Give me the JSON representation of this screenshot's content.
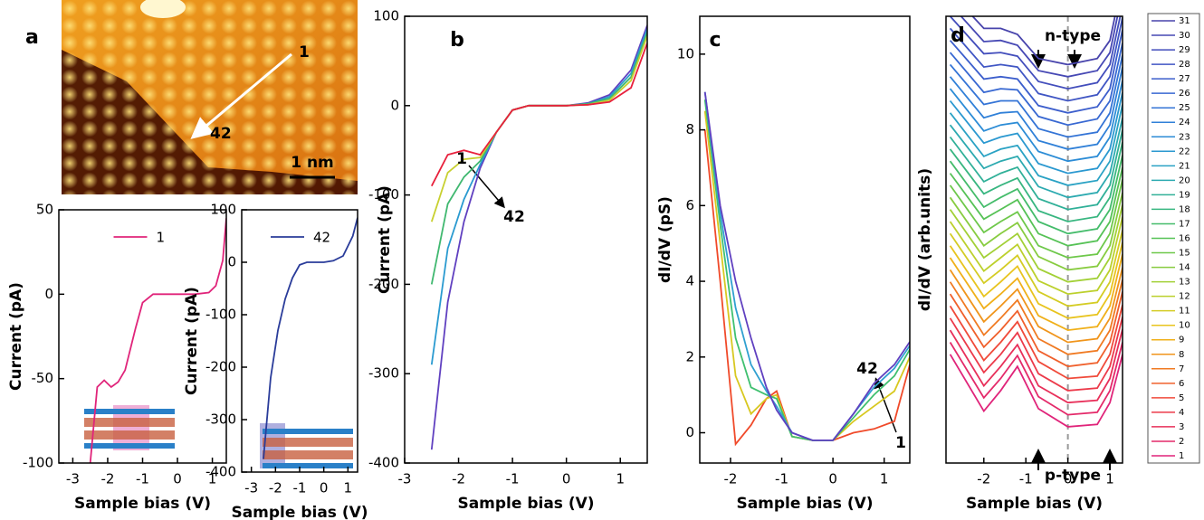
{
  "image": {
    "panel_label": "a",
    "markers": [
      "1",
      "42"
    ],
    "scale_bar": "1 nm"
  },
  "chart_data": [
    {
      "type": "line",
      "xlabel": "Sample bias (V)",
      "ylabel": "Current (pA)",
      "xlim": [
        -3.4,
        1.4
      ],
      "xticks": [
        -3,
        -2,
        -1,
        0,
        1
      ],
      "ylim": [
        -100,
        50
      ],
      "yticks": [
        -100,
        -50,
        0,
        50
      ],
      "legend": "upper center",
      "x": [
        -2.5,
        -2.3,
        -2.1,
        -1.9,
        -1.7,
        -1.5,
        -1.2,
        -1.0,
        -0.7,
        0,
        0.5,
        0.9,
        1.1,
        1.3,
        1.4
      ],
      "series": [
        {
          "name": "1",
          "color": "#e0247a",
          "values": [
            -100,
            -55,
            -51,
            -55,
            -52,
            -45,
            -20,
            -5,
            0,
            0,
            0,
            1,
            5,
            20,
            45
          ]
        }
      ]
    },
    {
      "type": "line",
      "xlabel": "Sample bias (V)",
      "ylabel": "Current (pA)",
      "xlim": [
        -3.4,
        1.4
      ],
      "xticks": [
        -3,
        -2,
        -1,
        0,
        1
      ],
      "ylim": [
        -400,
        100
      ],
      "yticks": [
        -400,
        -300,
        -200,
        -100,
        0,
        100
      ],
      "legend": "upper center",
      "x": [
        -2.5,
        -2.2,
        -1.9,
        -1.6,
        -1.3,
        -1.0,
        -0.7,
        0,
        0.4,
        0.8,
        1.2,
        1.4
      ],
      "series": [
        {
          "name": "42",
          "color": "#2a3c9a",
          "values": [
            -375,
            -220,
            -130,
            -70,
            -30,
            -5,
            0,
            0,
            3,
            12,
            50,
            85
          ]
        }
      ]
    },
    {
      "type": "line",
      "panel_label": "b",
      "xlabel": "Sample bias (V)",
      "ylabel": "Current (pA)",
      "xlim": [
        -3,
        1.5
      ],
      "xticks": [
        -3,
        -2,
        -1,
        0,
        1
      ],
      "ylim": [
        -400,
        100
      ],
      "yticks": [
        -400,
        -300,
        -200,
        -100,
        0,
        100
      ],
      "annotations": [
        "1",
        "42"
      ],
      "x": [
        -2.5,
        -2.2,
        -1.9,
        -1.6,
        -1.3,
        -1.0,
        -0.7,
        0,
        0.4,
        0.8,
        1.2,
        1.5
      ],
      "series": [
        {
          "color": "#6040c0",
          "values": [
            -385,
            -220,
            -130,
            -70,
            -30,
            -5,
            0,
            0,
            3,
            12,
            40,
            90
          ]
        },
        {
          "color": "#2a9ad0",
          "values": [
            -290,
            -160,
            -105,
            -66,
            -30,
            -5,
            0,
            0,
            2,
            10,
            36,
            86
          ]
        },
        {
          "color": "#40b870",
          "values": [
            -200,
            -110,
            -80,
            -62,
            -30,
            -5,
            0,
            0,
            2,
            8,
            32,
            82
          ]
        },
        {
          "color": "#c8d030",
          "values": [
            -130,
            -75,
            -60,
            -58,
            -30,
            -5,
            0,
            0,
            1,
            6,
            28,
            78
          ]
        },
        {
          "color": "#e8203c",
          "values": [
            -90,
            -55,
            -50,
            -55,
            -30,
            -5,
            0,
            0,
            1,
            4,
            20,
            70
          ]
        }
      ]
    },
    {
      "type": "line",
      "panel_label": "c",
      "xlabel": "Sample bias (V)",
      "ylabel": "dI/dV (pS)",
      "xlim": [
        -2.6,
        1.5
      ],
      "xticks": [
        -2,
        -1,
        0,
        1
      ],
      "ylim": [
        -0.8,
        11
      ],
      "yticks": [
        0,
        2,
        4,
        6,
        8,
        10
      ],
      "annotations": [
        "42",
        "1"
      ],
      "x": [
        -2.5,
        -2.2,
        -1.9,
        -1.6,
        -1.3,
        -1.1,
        -0.8,
        -0.4,
        0,
        0.4,
        0.8,
        1.2,
        1.5
      ],
      "series": [
        {
          "color": "#f04a2a",
          "values": [
            8,
            4,
            -0.3,
            0.2,
            0.9,
            1.1,
            -0.1,
            -0.2,
            -0.2,
            0,
            0.1,
            0.3,
            1.8
          ]
        },
        {
          "color": "#d8c820",
          "values": [
            8.5,
            5,
            1.5,
            0.5,
            0.9,
            1.0,
            -0.1,
            -0.2,
            -0.2,
            0.3,
            0.7,
            1.1,
            2
          ]
        },
        {
          "color": "#40c070",
          "values": [
            8.8,
            5.5,
            2.5,
            1.2,
            1.0,
            0.9,
            -0.1,
            -0.2,
            -0.2,
            0.4,
            1.0,
            1.5,
            2.2
          ]
        },
        {
          "color": "#30a0d0",
          "values": [
            9,
            5.8,
            3.3,
            1.8,
            1.1,
            0.7,
            0,
            -0.2,
            -0.2,
            0.5,
            1.2,
            1.7,
            2.3
          ]
        },
        {
          "color": "#6040c0",
          "values": [
            9,
            6,
            4,
            2.5,
            1.2,
            0.6,
            0,
            -0.2,
            -0.2,
            0.5,
            1.3,
            1.8,
            2.4
          ]
        }
      ]
    },
    {
      "type": "line",
      "panel_label": "d",
      "xlabel": "Sample bias (V)",
      "ylabel": "dI/dV (arb.units)",
      "xlim": [
        -2.9,
        1.3
      ],
      "xticks": [
        -2,
        -1,
        0,
        1
      ],
      "ylim": [
        0,
        37
      ],
      "zero_line": true,
      "legend": "outside right",
      "annotations": [
        "n-type",
        "p-type"
      ],
      "x": [
        -2.8,
        -2.0,
        -1.6,
        -1.2,
        -0.7,
        0,
        0.7,
        1.0,
        1.3
      ],
      "series": [
        {
          "name": "1",
          "color": "#e0247a",
          "values": [
            9,
            4.3,
            6,
            8,
            4.5,
            3,
            3.2,
            5,
            9
          ]
        },
        {
          "name": "2",
          "color": "#e42a6a",
          "values": [
            10,
            5.4,
            7,
            8.9,
            5.5,
            4,
            4.2,
            6,
            10
          ]
        },
        {
          "name": "3",
          "color": "#e8305a",
          "values": [
            11,
            6.4,
            8,
            9.8,
            6.4,
            5,
            5.2,
            7,
            11.1
          ]
        },
        {
          "name": "4",
          "color": "#ec3a4a",
          "values": [
            12,
            7.5,
            9,
            10.8,
            7.4,
            6,
            6.2,
            8,
            12.1
          ]
        },
        {
          "name": "5",
          "color": "#f04a3a",
          "values": [
            13,
            8.5,
            10,
            11.7,
            8.4,
            7,
            7.2,
            9,
            13.1
          ]
        },
        {
          "name": "6",
          "color": "#f0602c",
          "values": [
            14,
            9.6,
            11,
            12.6,
            9.3,
            8,
            8.3,
            10,
            14.2
          ]
        },
        {
          "name": "7",
          "color": "#f07a22",
          "values": [
            15,
            10.6,
            12,
            13.5,
            10.3,
            9,
            9.3,
            11,
            15.2
          ]
        },
        {
          "name": "8",
          "color": "#f0951c",
          "values": [
            16,
            11.7,
            13,
            14.4,
            11.3,
            10,
            10.3,
            12,
            16.2
          ]
        },
        {
          "name": "9",
          "color": "#f0b01a",
          "values": [
            17,
            12.8,
            14,
            15.3,
            12.2,
            11,
            11.3,
            13,
            17.3
          ]
        },
        {
          "name": "10",
          "color": "#e8c41e",
          "values": [
            18,
            13.8,
            15,
            16.3,
            13.2,
            12,
            12.3,
            14,
            18.3
          ]
        },
        {
          "name": "11",
          "color": "#d4cc24",
          "values": [
            19,
            14.9,
            16,
            17.2,
            14.2,
            13,
            13.3,
            15,
            19.3
          ]
        },
        {
          "name": "12",
          "color": "#bcd02c",
          "values": [
            20,
            15.9,
            17,
            18.1,
            15.1,
            14,
            14.3,
            16,
            20.4
          ]
        },
        {
          "name": "13",
          "color": "#a2d036",
          "values": [
            21,
            17,
            18,
            19,
            16.1,
            15,
            15.3,
            17,
            21.4
          ]
        },
        {
          "name": "14",
          "color": "#88cc40",
          "values": [
            22,
            18,
            19,
            19.9,
            17.1,
            16,
            16.3,
            18,
            22.4
          ]
        },
        {
          "name": "15",
          "color": "#6ec84a",
          "values": [
            23,
            19.1,
            20,
            20.8,
            18,
            17,
            17.3,
            19,
            23.5
          ]
        },
        {
          "name": "16",
          "color": "#56c256",
          "values": [
            24,
            20.2,
            21,
            21.8,
            19,
            18,
            18.4,
            20,
            24.5
          ]
        },
        {
          "name": "17",
          "color": "#44bc6a",
          "values": [
            25,
            21.2,
            22,
            22.7,
            20,
            19,
            19.4,
            21,
            25.5
          ]
        },
        {
          "name": "18",
          "color": "#38b680",
          "values": [
            26,
            22.3,
            23,
            23.6,
            20.9,
            20,
            20.4,
            22,
            26.6
          ]
        },
        {
          "name": "19",
          "color": "#30b098",
          "values": [
            27,
            23.3,
            24,
            24.5,
            21.9,
            21,
            21.4,
            23,
            27.6
          ]
        },
        {
          "name": "20",
          "color": "#2caab0",
          "values": [
            28,
            24.4,
            25,
            25.4,
            22.9,
            22,
            22.4,
            24,
            28.6
          ]
        },
        {
          "name": "21",
          "color": "#2aa2c4",
          "values": [
            29,
            25.4,
            26,
            26.3,
            23.8,
            23,
            23.4,
            25,
            29.7
          ]
        },
        {
          "name": "22",
          "color": "#2a98d0",
          "values": [
            30,
            26.5,
            27,
            27.3,
            24.8,
            24,
            24.4,
            26,
            30.7
          ]
        },
        {
          "name": "23",
          "color": "#2c8cd6",
          "values": [
            31,
            27.5,
            28,
            28.2,
            25.8,
            25,
            25.4,
            27,
            31.7
          ]
        },
        {
          "name": "24",
          "color": "#3080d8",
          "values": [
            32,
            28.6,
            29,
            29.1,
            26.7,
            26,
            26.4,
            28,
            32.8
          ]
        },
        {
          "name": "25",
          "color": "#3474d6",
          "values": [
            33,
            29.7,
            30,
            30,
            27.7,
            27,
            27.4,
            29,
            33.8
          ]
        },
        {
          "name": "26",
          "color": "#3868d2",
          "values": [
            34,
            30.7,
            31,
            30.9,
            28.7,
            28,
            28.5,
            30,
            34.8
          ]
        },
        {
          "name": "27",
          "color": "#3c5ecc",
          "values": [
            35,
            31.8,
            32,
            31.8,
            29.6,
            29,
            29.5,
            31,
            35.9
          ]
        },
        {
          "name": "28",
          "color": "#4056c4",
          "values": [
            36,
            32.8,
            33,
            32.8,
            30.6,
            30,
            30.5,
            32,
            36.9
          ]
        },
        {
          "name": "29",
          "color": "#434ebc",
          "values": [
            37,
            33.9,
            34,
            33.7,
            31.6,
            31,
            31.5,
            33,
            37.9
          ]
        },
        {
          "name": "30",
          "color": "#4648b4",
          "values": [
            38,
            34.9,
            35,
            34.6,
            32.5,
            32,
            32.5,
            34,
            39
          ]
        },
        {
          "name": "31",
          "color": "#4844ac",
          "values": [
            39,
            36,
            36,
            35.5,
            33.5,
            33,
            33.5,
            35,
            40
          ]
        }
      ]
    }
  ]
}
